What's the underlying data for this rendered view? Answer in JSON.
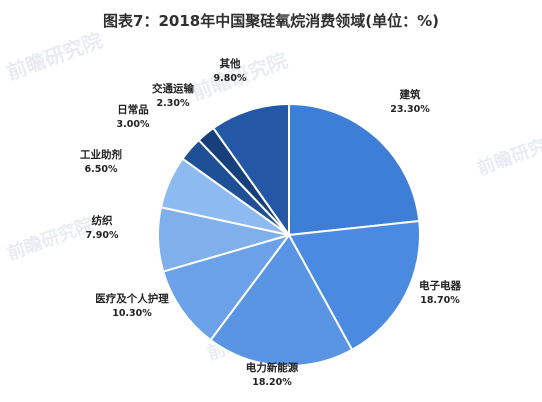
{
  "chart_data": {
    "type": "pie",
    "title": "图表7：2018年中国聚硅氧烷消费领域(单位：%)",
    "start_angle_deg": 0,
    "direction": "clockwise",
    "slices": [
      {
        "label": "建筑",
        "value": 23.3,
        "value_text": "23.30%",
        "color": "#3d7fd6"
      },
      {
        "label": "电子电器",
        "value": 18.7,
        "value_text": "18.70%",
        "color": "#4a8ae0"
      },
      {
        "label": "电力新能源",
        "value": 18.2,
        "value_text": "18.20%",
        "color": "#5a95e3"
      },
      {
        "label": "医疗及个人护理",
        "value": 10.3,
        "value_text": "10.30%",
        "color": "#6aa1e8"
      },
      {
        "label": "纺织",
        "value": 7.9,
        "value_text": "7.90%",
        "color": "#7fb0ec"
      },
      {
        "label": "工业助剂",
        "value": 6.5,
        "value_text": "6.50%",
        "color": "#8dbaf0"
      },
      {
        "label": "日常品",
        "value": 3.0,
        "value_text": "3.00%",
        "color": "#1f4f94"
      },
      {
        "label": "交通运输",
        "value": 2.3,
        "value_text": "2.30%",
        "color": "#173f79"
      },
      {
        "label": "其他",
        "value": 9.8,
        "value_text": "9.80%",
        "color": "#2557a7"
      }
    ]
  },
  "watermark": {
    "text": "前瞻研究院"
  }
}
